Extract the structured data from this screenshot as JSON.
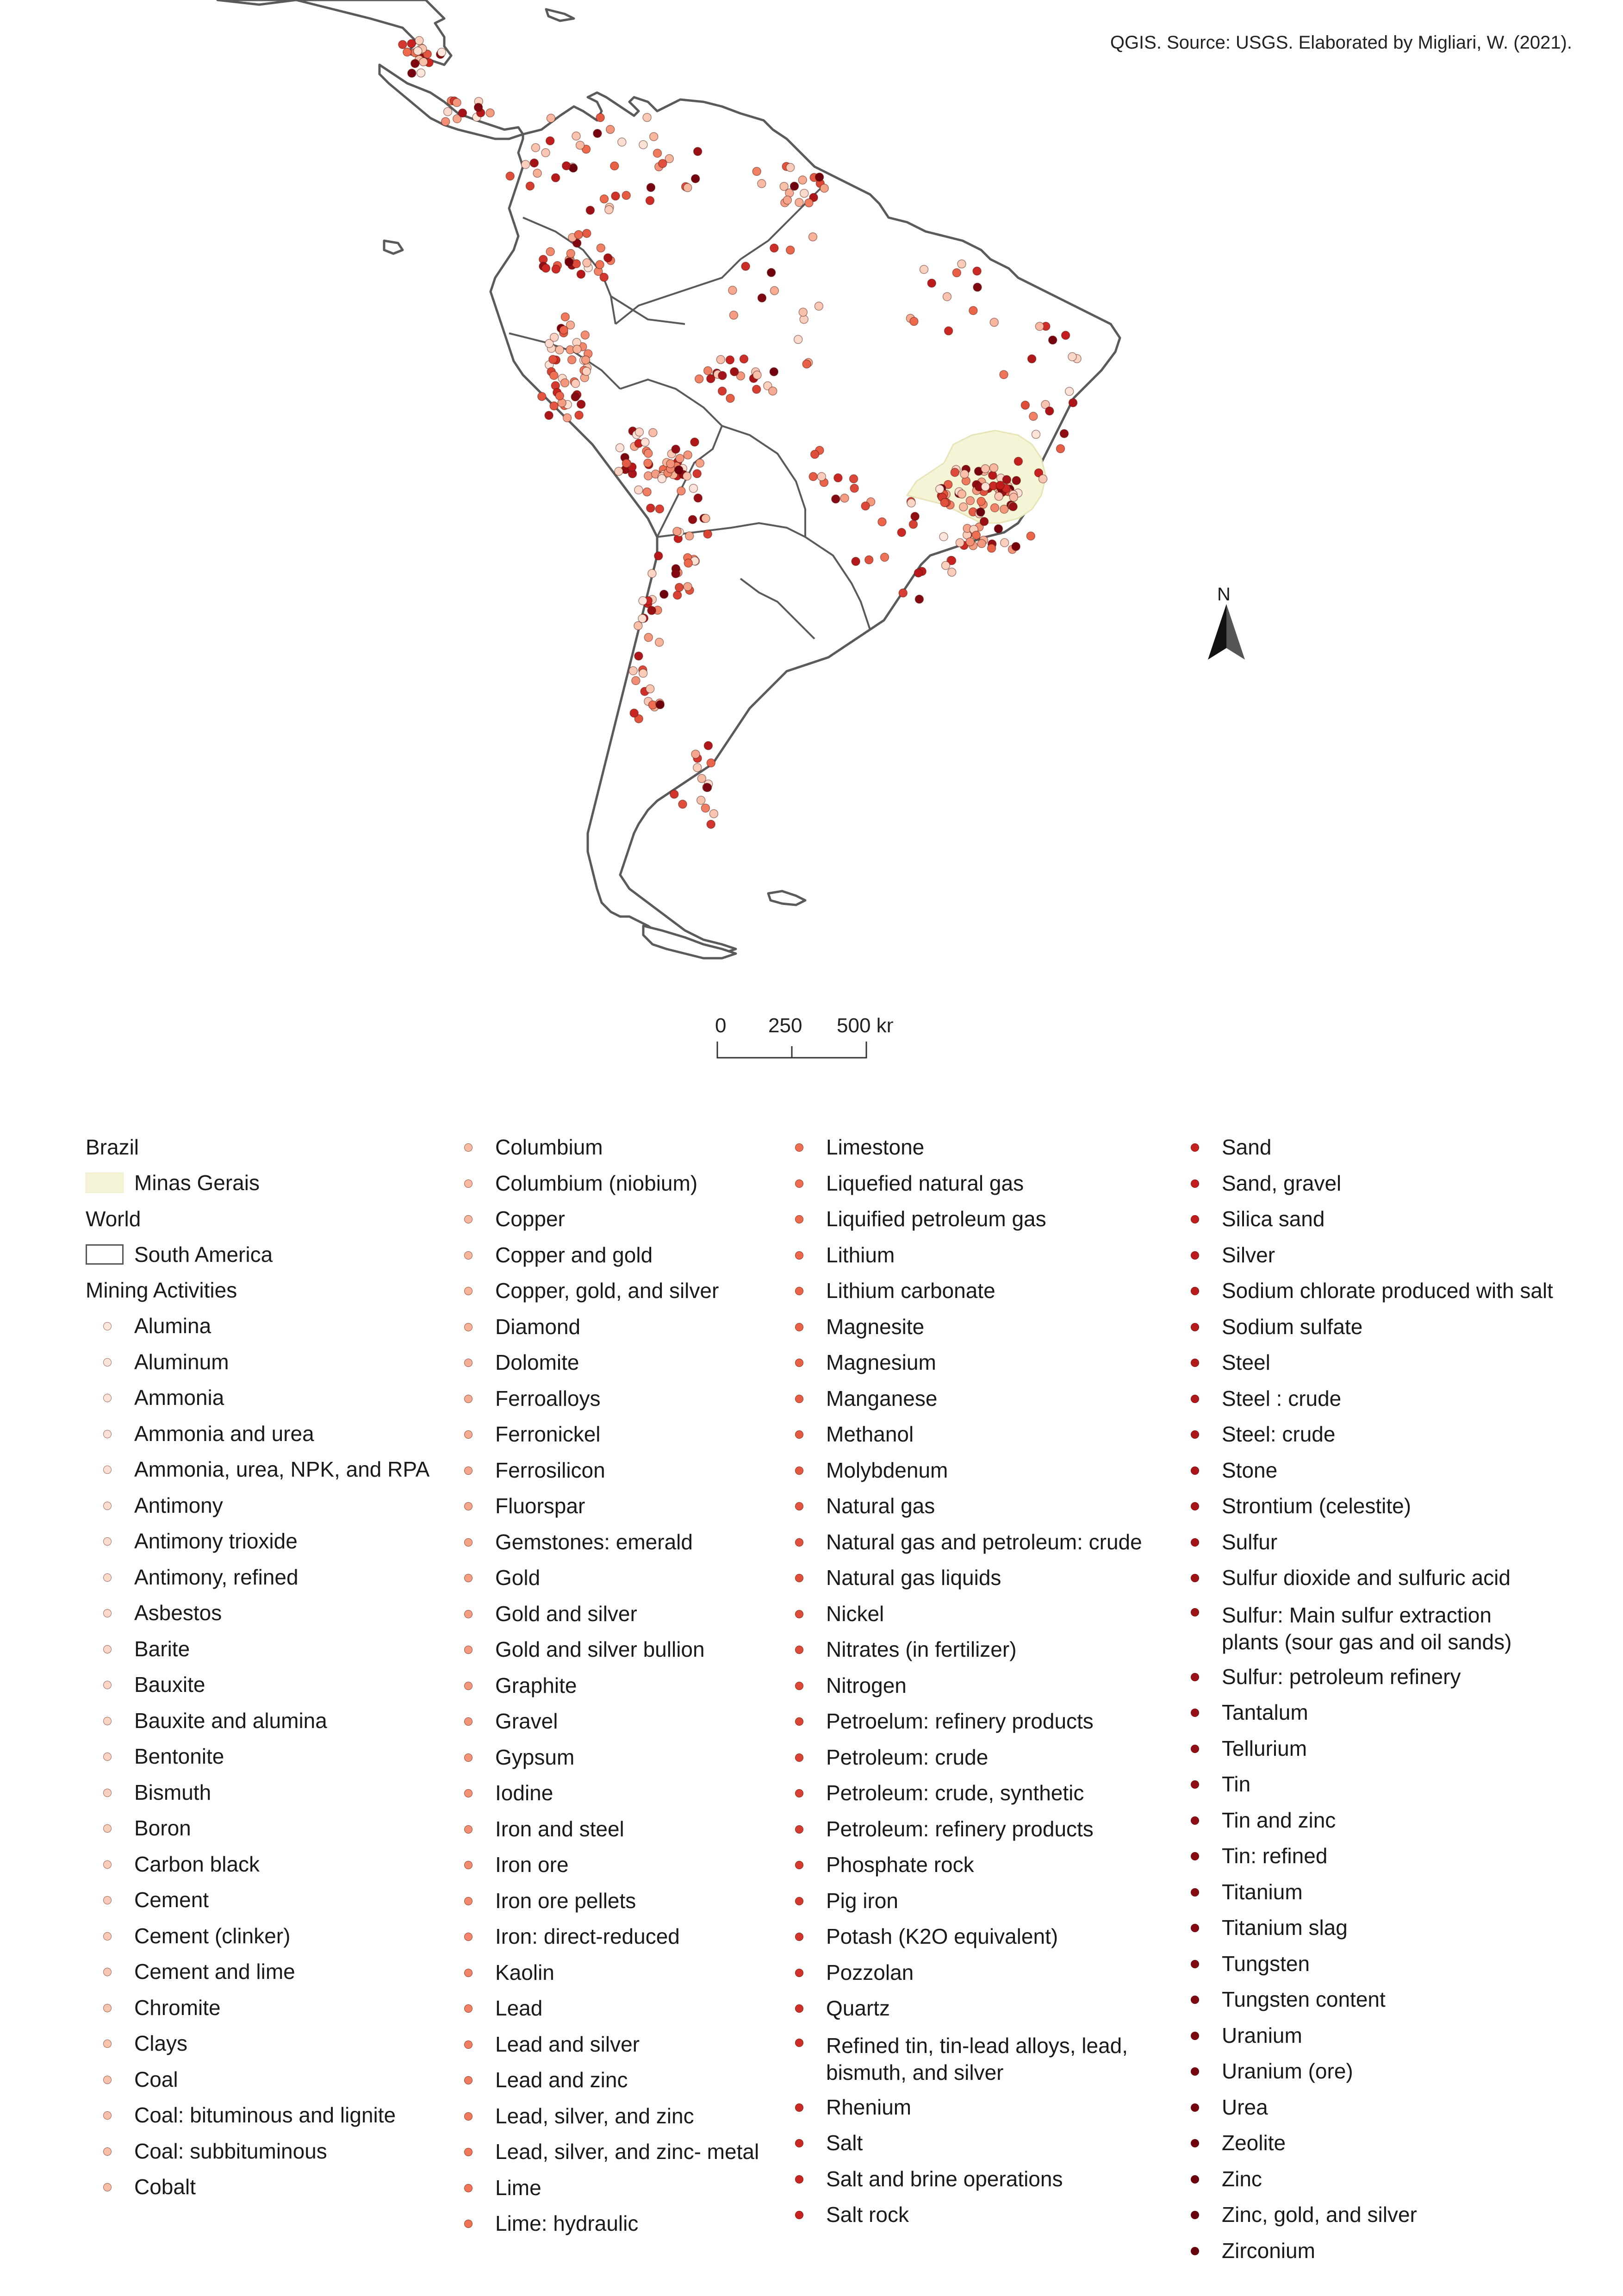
{
  "credit": "QGIS. Source: USGS. Elaborated by Migliari, W. (2021).",
  "north_label": "N",
  "scale": {
    "labels": [
      "0",
      "250",
      "500 km"
    ]
  },
  "colors": {
    "land_outline": "#5a5a5a",
    "minas_gerais_fill": "#f6f4d7",
    "dot_ramp": [
      "#fde6dc",
      "#f7b49a",
      "#ee6a4d",
      "#c51d1d",
      "#67000d"
    ]
  },
  "legend": {
    "brazil_title": "Brazil",
    "minas_gerais": "Minas Gerais",
    "world_title": "World",
    "south_america": "South America",
    "mining_title": "Mining Activities",
    "col1": [
      "Alumina",
      "Aluminum",
      "Ammonia",
      "Ammonia and urea",
      "Ammonia, urea, NPK, and RPA",
      "Antimony",
      "Antimony trioxide",
      "Antimony, refined",
      "Asbestos",
      "Barite",
      "Bauxite",
      "Bauxite and alumina",
      "Bentonite",
      "Bismuth",
      "Boron",
      "Carbon black",
      "Cement",
      "Cement (clinker)",
      "Cement and lime",
      "Chromite",
      "Clays",
      "Coal",
      "Coal: bituminous and lignite",
      "Coal: subbituminous",
      "Cobalt"
    ],
    "col2": [
      "Columbium",
      "Columbium (niobium)",
      "Copper",
      "Copper and gold",
      "Copper, gold, and silver",
      "Diamond",
      "Dolomite",
      "Ferroalloys",
      "Ferronickel",
      "Ferrosilicon",
      "Fluorspar",
      "Gemstones: emerald",
      "Gold",
      "Gold and silver",
      "Gold and silver bullion",
      "Graphite",
      "Gravel",
      "Gypsum",
      "Iodine",
      "Iron and steel",
      "Iron ore",
      "Iron ore pellets",
      "Iron: direct-reduced",
      "Kaolin",
      "Lead",
      "Lead and silver",
      "Lead and zinc",
      "Lead, silver, and zinc",
      "Lead, silver, and zinc- metal",
      "Lime",
      "Lime: hydraulic"
    ],
    "col3": [
      "Limestone",
      "Liquefied natural gas",
      "Liquified petroleum gas",
      "Lithium",
      "Lithium carbonate",
      "Magnesite",
      "Magnesium",
      "Manganese",
      "Methanol",
      "Molybdenum",
      "Natural gas",
      "Natural gas and petroleum: crude",
      "Natural gas liquids",
      "Nickel",
      "Nitrates (in fertilizer)",
      "Nitrogen",
      "Petroelum: refinery products",
      "Petroleum: crude",
      "Petroleum: crude, synthetic",
      "Petroleum: refinery products",
      "Phosphate rock",
      "Pig iron",
      "Potash (K2O equivalent)",
      "Pozzolan",
      "Quartz",
      "Refined tin, tin-lead alloys, lead, bismuth, and silver",
      "Rhenium",
      "Salt",
      "Salt and brine operations",
      "Salt rock"
    ],
    "col4": [
      "Sand",
      "Sand, gravel",
      "Silica sand",
      "Silver",
      "Sodium chlorate produced with salt",
      "Sodium sulfate",
      "Steel",
      "Steel : crude",
      "Steel: crude",
      "Stone",
      "Strontium (celestite)",
      "Sulfur",
      "Sulfur dioxide and sulfuric acid",
      "Sulfur: Main sulfur extraction plants (sour gas and oil sands)",
      "Sulfur: petroleum refinery",
      "Tantalum",
      "Tellurium",
      "Tin",
      "Tin and zinc",
      "Tin: refined",
      "Titanium",
      "Titanium slag",
      "Tungsten",
      "Tungsten content",
      "Uranium",
      "Uranium (ore)",
      "Urea",
      "Zeolite",
      "Zinc",
      "Zinc, gold, and silver",
      "Zirconium"
    ]
  }
}
